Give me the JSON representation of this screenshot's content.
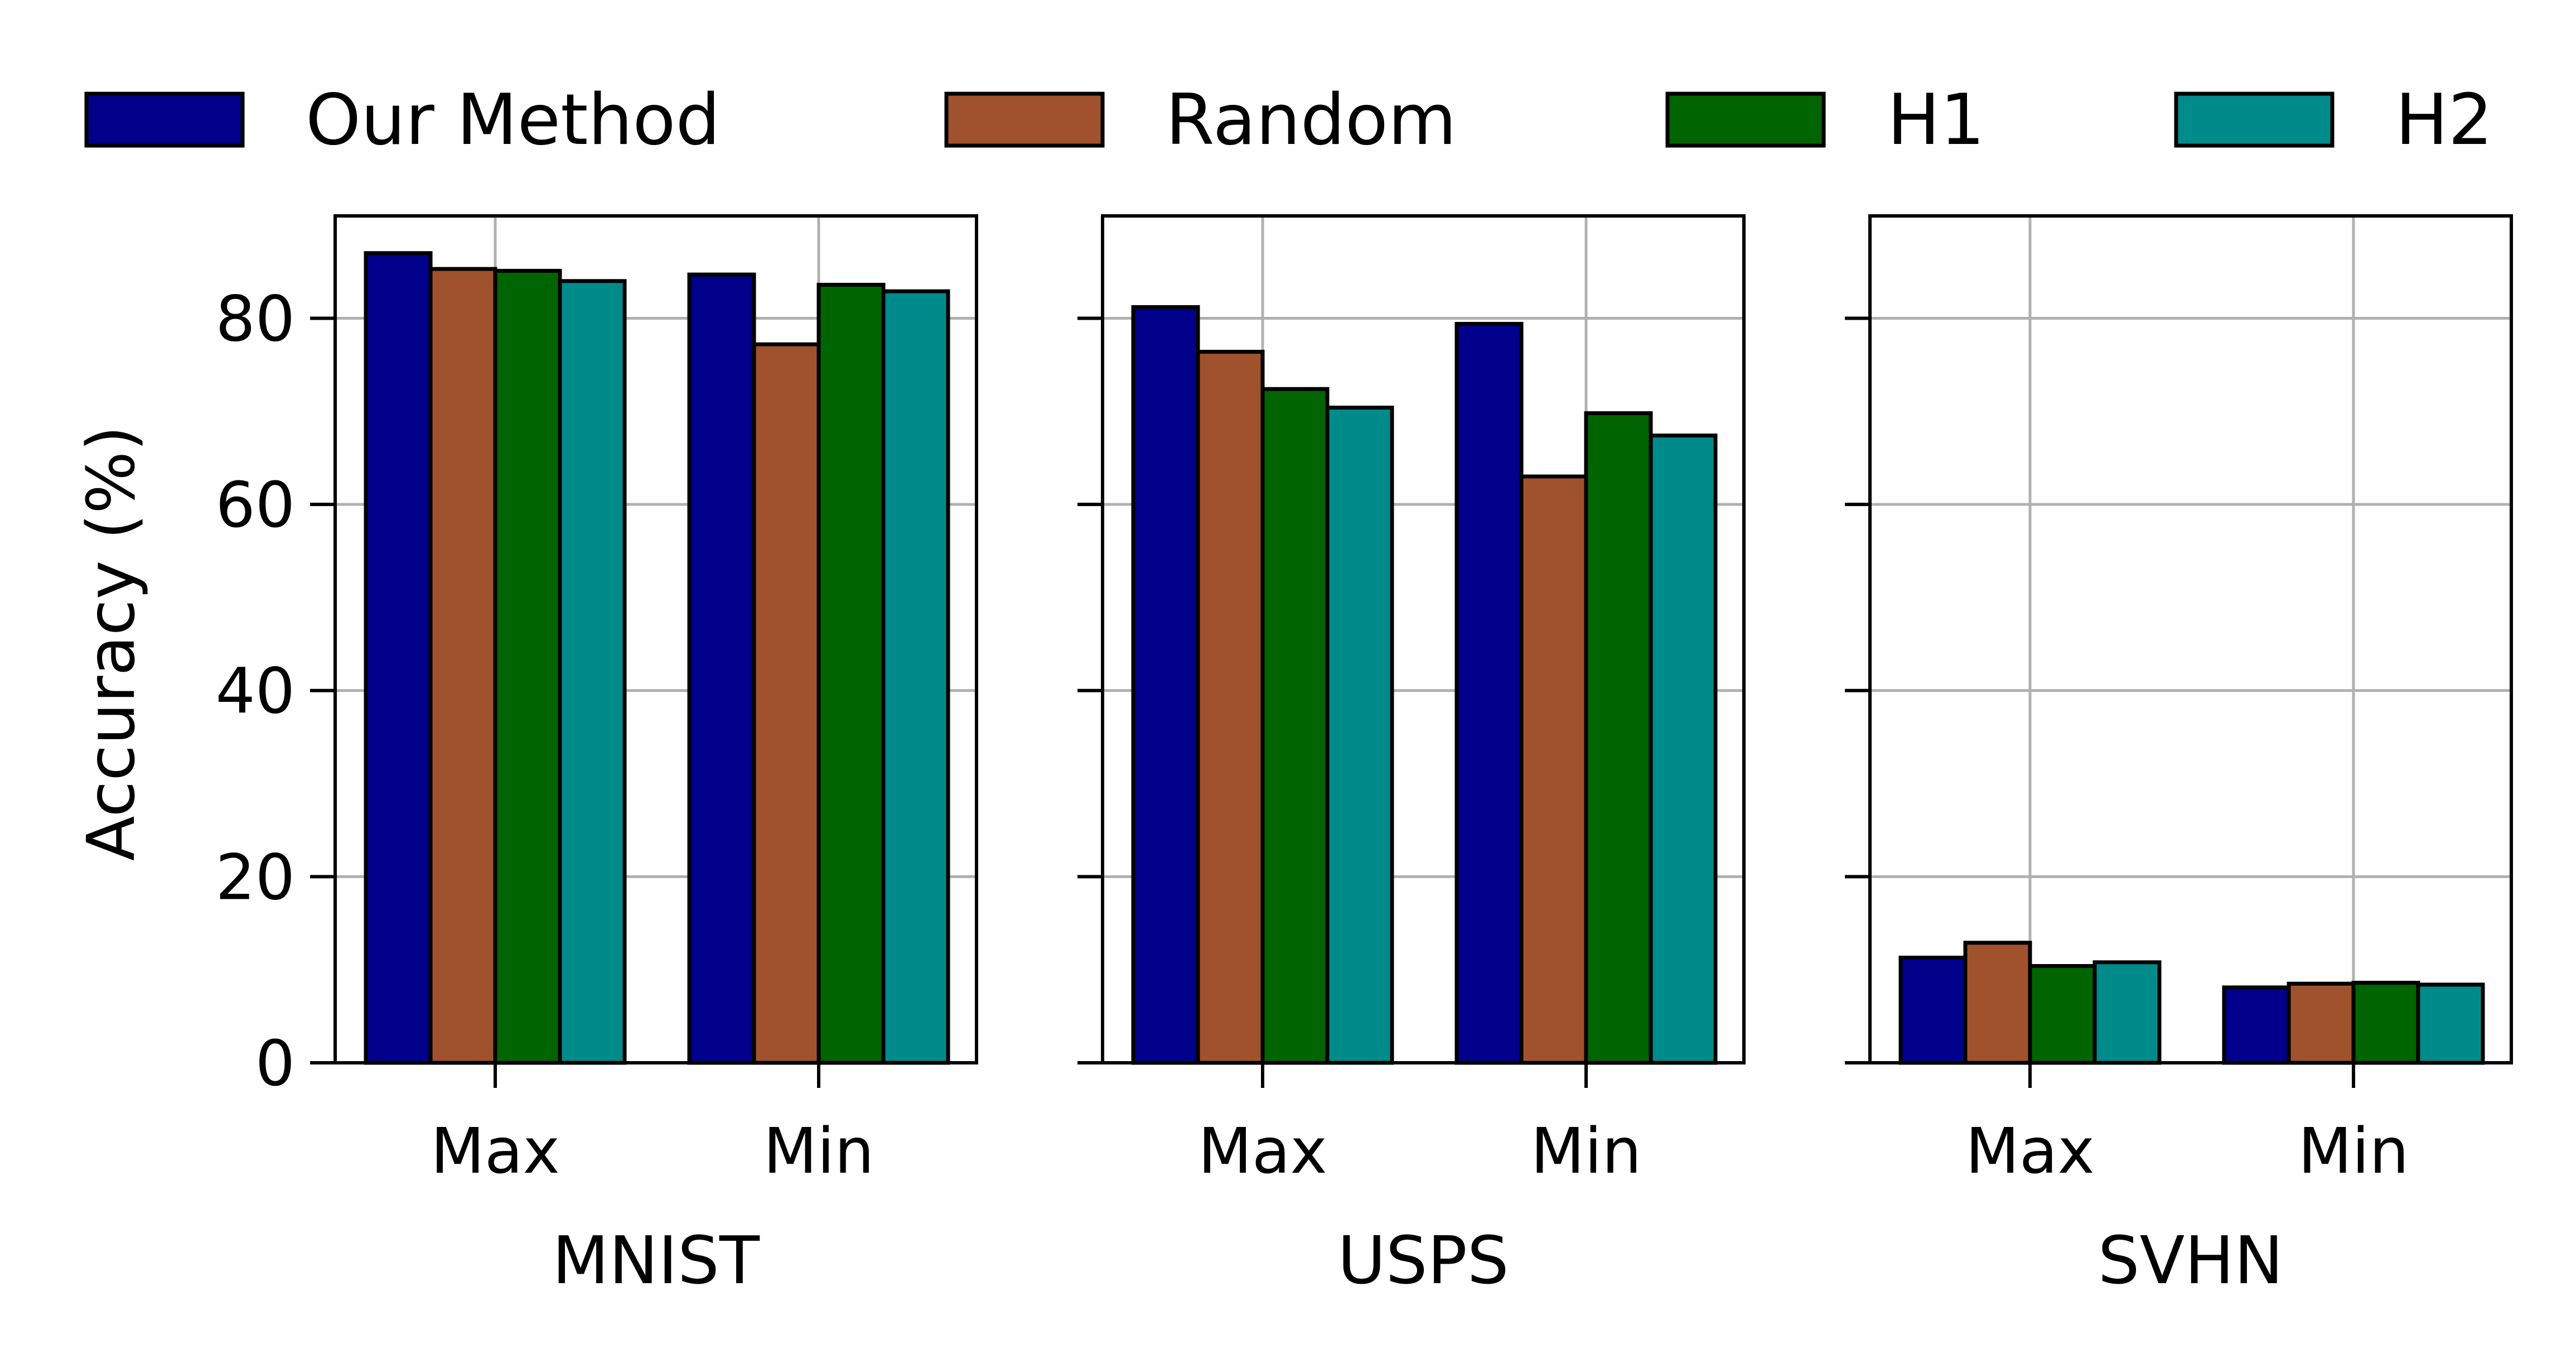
{
  "colors": {
    "Our Method": "#00008b",
    "Random": "#a0522d",
    "H1": "#006400",
    "H2": "#008b8b"
  },
  "chart_data": {
    "type": "bar",
    "legend": {
      "position": "top",
      "entries": [
        "Our Method",
        "Random",
        "H1",
        "H2"
      ]
    },
    "ylabel": "Accuracy (%)",
    "ylim": [
      0,
      91
    ],
    "yticks": [
      0,
      20,
      40,
      60,
      80
    ],
    "grid": true,
    "panels": [
      {
        "xlabel": "MNIST",
        "categories": [
          "Max",
          "Min"
        ],
        "series": [
          {
            "name": "Our Method",
            "values": [
              87.0,
              84.7
            ]
          },
          {
            "name": "Random",
            "values": [
              85.3,
              77.2
            ]
          },
          {
            "name": "H1",
            "values": [
              85.1,
              83.6
            ]
          },
          {
            "name": "H2",
            "values": [
              84.0,
              82.9
            ]
          }
        ]
      },
      {
        "xlabel": "USPS",
        "categories": [
          "Max",
          "Min"
        ],
        "series": [
          {
            "name": "Our Method",
            "values": [
              81.2,
              79.4
            ]
          },
          {
            "name": "Random",
            "values": [
              76.4,
              63.0
            ]
          },
          {
            "name": "H1",
            "values": [
              72.4,
              69.8
            ]
          },
          {
            "name": "H2",
            "values": [
              70.4,
              67.4
            ]
          }
        ]
      },
      {
        "xlabel": "SVHN",
        "categories": [
          "Max",
          "Min"
        ],
        "series": [
          {
            "name": "Our Method",
            "values": [
              11.3,
              8.1
            ]
          },
          {
            "name": "Random",
            "values": [
              12.9,
              8.5
            ]
          },
          {
            "name": "H1",
            "values": [
              10.4,
              8.6
            ]
          },
          {
            "name": "H2",
            "values": [
              10.8,
              8.4
            ]
          }
        ]
      }
    ]
  }
}
